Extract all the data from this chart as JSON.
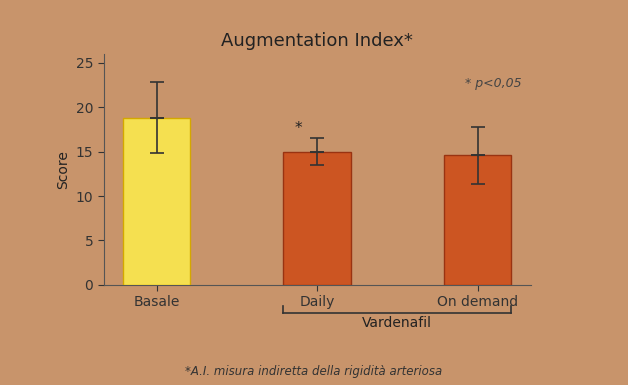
{
  "categories": [
    "Basale",
    "Daily",
    "On demand"
  ],
  "values": [
    18.8,
    15.0,
    14.6
  ],
  "errors": [
    4.0,
    1.5,
    3.2
  ],
  "bar_colors": [
    "#F5E050",
    "#CC5522",
    "#CC5522"
  ],
  "bar_edge_colors": [
    "#D4A800",
    "#993311",
    "#993311"
  ],
  "title": "Augmentation Index·",
  "ylabel": "Score",
  "ylim": [
    0,
    26
  ],
  "yticks": [
    0,
    5,
    10,
    15,
    20,
    25
  ],
  "background_color": "#C8946B",
  "annotation_pvalue": "* p<0,05",
  "vardenafil_label": "Vardenafil",
  "footnote": "*A.I. misura indiretta della rigidità arteriosa",
  "significance_marks": [
    false,
    true,
    false
  ],
  "title_fontsize": 13,
  "label_fontsize": 10,
  "tick_fontsize": 10,
  "bar_width": 0.42
}
